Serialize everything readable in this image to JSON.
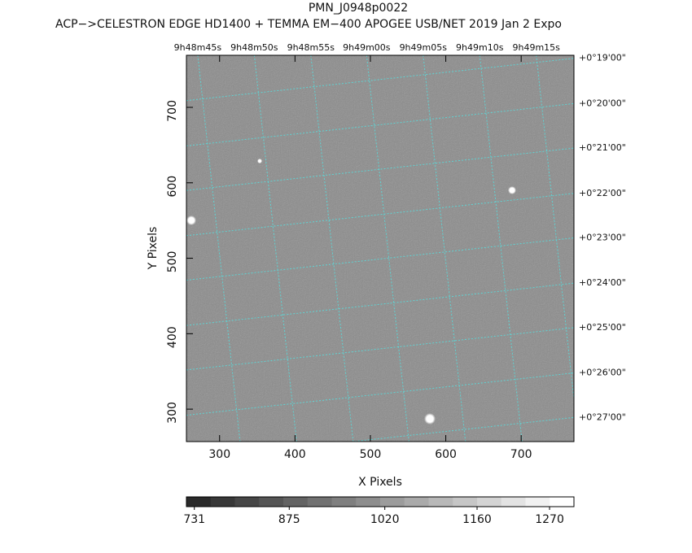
{
  "chart_data": {
    "type": "image",
    "title": "PMN_J0948p0022",
    "subtitle": "ACP−>CELESTRON EDGE HD1400 + TEMMA EM−400 APOGEE USB/NET   2019 Jan  2    Expo",
    "x_label": "X Pixels",
    "y_label": "Y Pixels",
    "xlim": [
      256,
      770
    ],
    "ylim": [
      257,
      769
    ],
    "xticks": [
      300,
      400,
      500,
      600,
      700
    ],
    "yticks": [
      300,
      400,
      500,
      600,
      700
    ],
    "x2ticks": [
      {
        "value": 271,
        "label": "9h48m45s"
      },
      {
        "value": 346,
        "label": "9h48m50s"
      },
      {
        "value": 421,
        "label": "9h48m55s"
      },
      {
        "value": 495,
        "label": "9h49m00s"
      },
      {
        "value": 570,
        "label": "9h49m05s"
      },
      {
        "value": 645,
        "label": "9h49m10s"
      },
      {
        "value": 720,
        "label": "9h49m15s"
      }
    ],
    "y2ticks": [
      {
        "value": 765,
        "label": "+0°19'00\""
      },
      {
        "value": 705,
        "label": "+0°20'00\""
      },
      {
        "value": 646,
        "label": "+0°21'00\""
      },
      {
        "value": 586,
        "label": "+0°22'00\""
      },
      {
        "value": 527,
        "label": "+0°23'00\""
      },
      {
        "value": 467,
        "label": "+0°24'00\""
      },
      {
        "value": 408,
        "label": "+0°25'00\""
      },
      {
        "value": 348,
        "label": "+0°26'00\""
      },
      {
        "value": 289,
        "label": "+0°27'00\""
      }
    ],
    "grid_color": "#5fd3d3",
    "colorbar": {
      "lim": [
        719,
        1307
      ],
      "ticks": [
        731,
        875,
        1020,
        1160,
        1270
      ]
    }
  }
}
